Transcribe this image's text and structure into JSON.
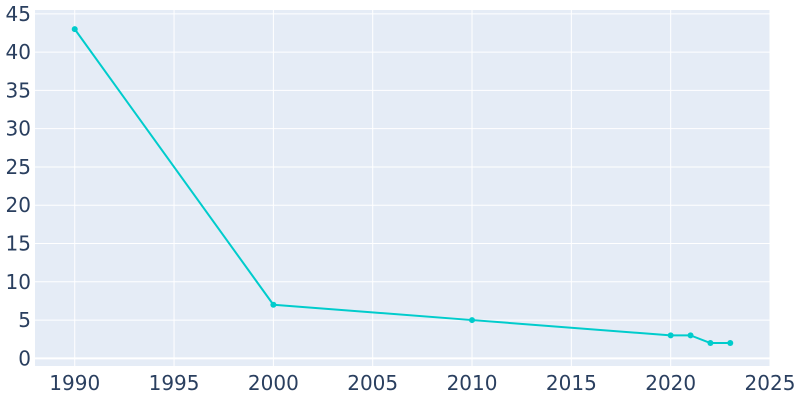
{
  "chart_data": {
    "type": "line",
    "title": "",
    "xlabel": "",
    "ylabel": "",
    "xlim": [
      1988,
      2025
    ],
    "ylim": [
      -1,
      45.5
    ],
    "x_ticks": [
      1990,
      1995,
      2000,
      2005,
      2010,
      2015,
      2020,
      2025
    ],
    "y_ticks": [
      0,
      5,
      10,
      15,
      20,
      25,
      30,
      35,
      40,
      45
    ],
    "grid": true,
    "legend": "none",
    "background_color": "#e5ecf6",
    "series": [
      {
        "color": "#00cccc",
        "markers": true,
        "x": [
          1990,
          2000,
          2010,
          2020,
          2021,
          2022,
          2023
        ],
        "y": [
          43,
          7,
          5,
          3,
          3,
          2,
          2
        ]
      }
    ]
  }
}
